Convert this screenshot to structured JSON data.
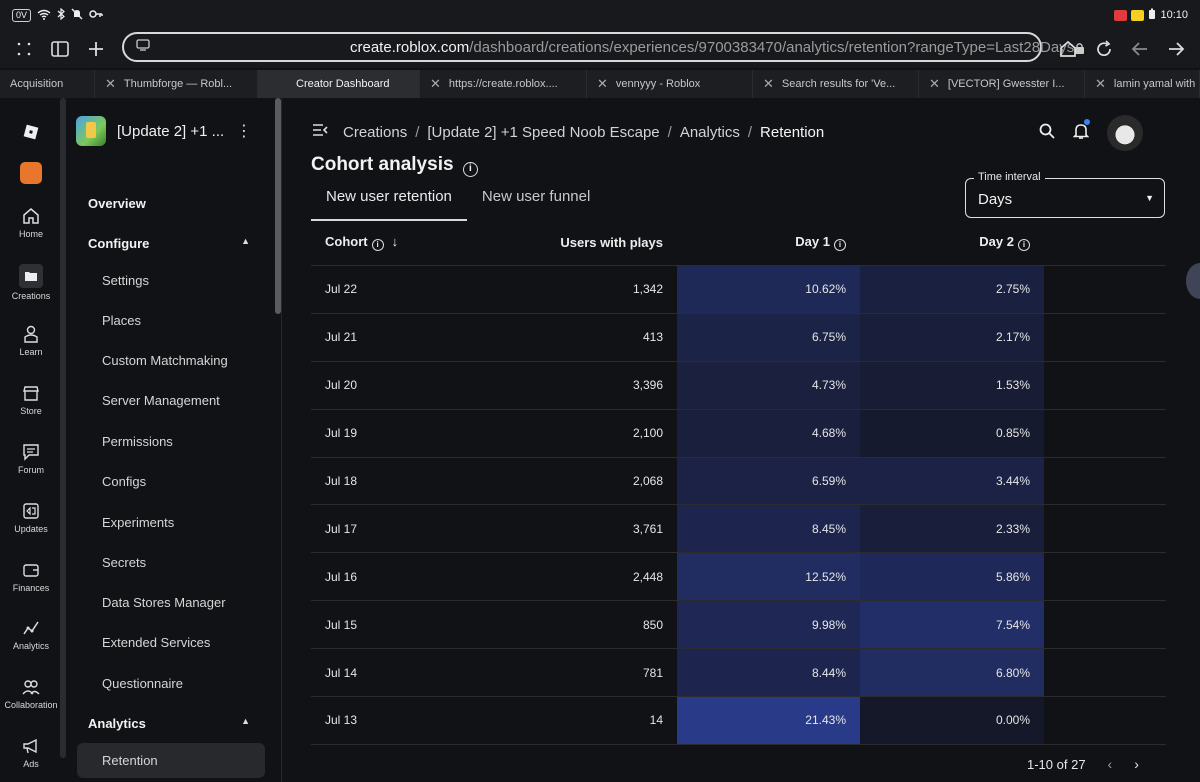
{
  "status_bar": {
    "badge": "0V",
    "time": "10:10",
    "icons": [
      "wifi-icon",
      "bluetooth-icon",
      "mute-icon",
      "key-icon",
      "battery-icon"
    ]
  },
  "browser": {
    "url_host": "create.roblox.com",
    "url_path": "/dashboard/creations/experiences/9700383470/analytics/retention?rangeType=Last28Days",
    "tabs": [
      {
        "label": "Acquisition"
      },
      {
        "label": "Thumbforge — Robl..."
      },
      {
        "label": "Creator Dashboard"
      },
      {
        "label": "https://create.roblox...."
      },
      {
        "label": "vennyyy - Roblox"
      },
      {
        "label": "Search results for 'Ve..."
      },
      {
        "label": "[VECTOR] Gwesster I..."
      },
      {
        "label": "lamin yamal with"
      }
    ]
  },
  "rail": {
    "items": [
      {
        "label": "Home"
      },
      {
        "label": "Creations"
      },
      {
        "label": "Learn"
      },
      {
        "label": "Store"
      },
      {
        "label": "Forum"
      },
      {
        "label": "Updates"
      },
      {
        "label": "Finances"
      },
      {
        "label": "Analytics"
      },
      {
        "label": "Collaboration"
      },
      {
        "label": "Ads"
      }
    ]
  },
  "nav": {
    "experience_title": "[Update 2] +1 ...",
    "overview": "Overview",
    "configure": "Configure",
    "configure_items": [
      "Settings",
      "Places",
      "Custom Matchmaking",
      "Server Management",
      "Permissions",
      "Configs",
      "Experiments",
      "Secrets",
      "Data Stores Manager",
      "Extended Services",
      "Questionnaire"
    ],
    "analytics": "Analytics",
    "analytics_items": [
      "Retention"
    ]
  },
  "breadcrumb": {
    "items": [
      "Creations",
      "[Update 2] +1 Speed Noob Escape",
      "Analytics",
      "Retention"
    ]
  },
  "section": {
    "title": "Cohort analysis",
    "tabs": [
      "New user retention",
      "New user funnel"
    ],
    "interval_label": "Time interval",
    "interval_value": "Days"
  },
  "table": {
    "headers": [
      "Cohort",
      "Users with plays",
      "Day 1",
      "Day 2"
    ],
    "rows": [
      {
        "cohort": "Jul 22",
        "users": "1,342",
        "day1": "10.62%",
        "day2": "2.75%"
      },
      {
        "cohort": "Jul 21",
        "users": "413",
        "day1": "6.75%",
        "day2": "2.17%"
      },
      {
        "cohort": "Jul 20",
        "users": "3,396",
        "day1": "4.73%",
        "day2": "1.53%"
      },
      {
        "cohort": "Jul 19",
        "users": "2,100",
        "day1": "4.68%",
        "day2": "0.85%"
      },
      {
        "cohort": "Jul 18",
        "users": "2,068",
        "day1": "6.59%",
        "day2": "3.44%"
      },
      {
        "cohort": "Jul 17",
        "users": "3,761",
        "day1": "8.45%",
        "day2": "2.33%"
      },
      {
        "cohort": "Jul 16",
        "users": "2,448",
        "day1": "12.52%",
        "day2": "5.86%"
      },
      {
        "cohort": "Jul 15",
        "users": "850",
        "day1": "9.98%",
        "day2": "7.54%"
      },
      {
        "cohort": "Jul 14",
        "users": "781",
        "day1": "8.44%",
        "day2": "6.80%"
      },
      {
        "cohort": "Jul 13",
        "users": "14",
        "day1": "21.43%",
        "day2": "0.00%"
      }
    ],
    "pagination": "1-10 of 27"
  },
  "colors": {
    "background": "#111215",
    "heat_low": "#151828",
    "heat_high": "#2a3b8c"
  }
}
